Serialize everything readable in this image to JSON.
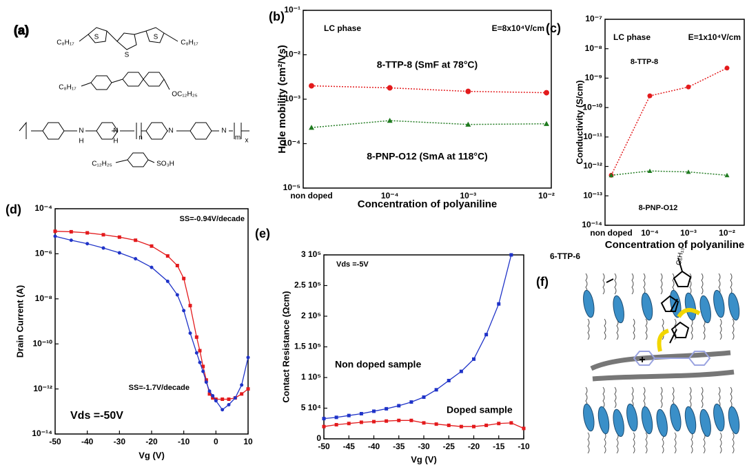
{
  "structures": {
    "panel": "(a)",
    "labels": [
      "C₈H₁₇",
      "S",
      "S",
      "S",
      "C₈H₁₇",
      "C₈H₁₇",
      "OC₁₂H₂₅",
      "N",
      "H",
      "N",
      "H",
      "n",
      "N",
      "N",
      "m",
      "x",
      "C₁₂H₂₅",
      "SO₃H"
    ]
  },
  "chart_data": [
    {
      "type": "line",
      "panel": "(b)",
      "ylabel": "Hole mobility (cm²/Vs)",
      "xlabel": "Concentration of polyaniline",
      "categories": [
        "non doped",
        "10⁻⁴",
        "10⁻³",
        "10⁻²"
      ],
      "yscale": "log",
      "ylim": [
        1e-05,
        0.1
      ],
      "yticks": [
        {
          "value": 1e-05,
          "label": "10⁻⁵"
        },
        {
          "value": 0.0001,
          "label": "10⁻⁴"
        },
        {
          "value": 0.001,
          "label": "10⁻³"
        },
        {
          "value": 0.01,
          "label": "10⁻²"
        },
        {
          "value": 0.1,
          "label": "10⁻¹"
        }
      ],
      "line_style": "dotted",
      "annotations": [
        "LC phase",
        "E=8x10⁴V/cm"
      ],
      "series": [
        {
          "name": "8-TTP-8 (SmF at 78°C)",
          "color": "#e31a1c",
          "marker": "circle",
          "values": [
            0.002,
            0.0018,
            0.0015,
            0.0014
          ]
        },
        {
          "name": "8-PNP-O12 (SmA at 118°C)",
          "color": "#1f7a1f",
          "marker": "triangle",
          "values": [
            0.00023,
            0.00033,
            0.00027,
            0.00028
          ]
        }
      ]
    },
    {
      "type": "line",
      "panel": "(c)",
      "ylabel": "Conductivity  (S/cm)",
      "xlabel": "Concentration of polyaniline",
      "categories": [
        "non doped",
        "10⁻⁴",
        "10⁻³",
        "10⁻²"
      ],
      "yscale": "log",
      "ylim": [
        1e-14,
        1e-07
      ],
      "yticks": [
        {
          "value": 1e-14,
          "label": "10⁻¹⁴"
        },
        {
          "value": 1e-13,
          "label": "10⁻¹³"
        },
        {
          "value": 1e-12,
          "label": "10⁻¹²"
        },
        {
          "value": 1e-11,
          "label": "10⁻¹¹"
        },
        {
          "value": 1e-10,
          "label": "10⁻¹⁰"
        },
        {
          "value": 1e-09,
          "label": "10⁻⁹"
        },
        {
          "value": 1e-08,
          "label": "10⁻⁸"
        },
        {
          "value": 1e-07,
          "label": "10⁻⁷"
        }
      ],
      "line_style": "dotted",
      "annotations": [
        "LC phase",
        "E=1x10⁴V/cm"
      ],
      "series": [
        {
          "name": "8-TTP-8",
          "color": "#e31a1c",
          "marker": "circle",
          "values": [
            5e-13,
            2.5e-10,
            5e-10,
            2.2e-09
          ]
        },
        {
          "name": "8-PNP-O12",
          "color": "#1f7a1f",
          "marker": "triangle",
          "values": [
            5e-13,
            7e-13,
            6.5e-13,
            5e-13
          ]
        }
      ]
    },
    {
      "type": "line",
      "panel": "(d)",
      "ylabel": "Drain Current (A)",
      "xlabel": "Vg (V)",
      "x": [
        -50,
        -45,
        -40,
        -35,
        -30,
        -25,
        -20,
        -15,
        -12,
        -10,
        -8,
        -6,
        -5,
        -4,
        -3,
        -2,
        -1,
        0,
        2,
        4,
        6,
        8,
        10
      ],
      "xlim": [
        -50,
        10
      ],
      "xticks": [
        -50,
        -40,
        -30,
        -20,
        -10,
        0,
        10
      ],
      "yscale": "log",
      "ylim": [
        1e-14,
        0.0001
      ],
      "yticks": [
        {
          "value": 1e-14,
          "label": "10⁻¹⁴"
        },
        {
          "value": 1e-12,
          "label": "10⁻¹²"
        },
        {
          "value": 1e-10,
          "label": "10⁻¹⁰"
        },
        {
          "value": 1e-08,
          "label": "10⁻⁸"
        },
        {
          "value": 1e-06,
          "label": "10⁻⁶"
        },
        {
          "value": 0.0001,
          "label": "10⁻⁴"
        }
      ],
      "line_style": "solid",
      "annotations": [
        "SS=-0.94V/decade",
        "SS=-1.7V/decade",
        "Vds =-50V"
      ],
      "series": [
        {
          "color": "#e31a1c",
          "marker": "square",
          "values": [
            1e-05,
            9.5e-06,
            8.5e-06,
            7e-06,
            5.5e-06,
            4e-06,
            2.2e-06,
            8e-07,
            3e-07,
            8e-08,
            5e-09,
            2e-10,
            5e-11,
            1e-11,
            2.5e-12,
            6e-13,
            4e-13,
            3.5e-13,
            3.5e-13,
            3.5e-13,
            4e-13,
            6e-13,
            1e-12
          ]
        },
        {
          "color": "#1f33c8",
          "marker": "circle",
          "values": [
            6e-06,
            4e-06,
            2.8e-06,
            1.8e-06,
            1.1e-06,
            6e-07,
            2.5e-07,
            6e-08,
            1.5e-08,
            3e-09,
            3e-10,
            4e-11,
            1.5e-11,
            6e-12,
            2e-12,
            8e-13,
            5e-13,
            3e-13,
            1.2e-13,
            2e-13,
            4e-13,
            1.5e-12,
            2.5e-11
          ]
        }
      ]
    },
    {
      "type": "line",
      "panel": "(e)",
      "ylabel": "Contact Resistance (Ωcm)",
      "xlabel": "Vg (V)",
      "x": [
        -50,
        -47.5,
        -45,
        -42.5,
        -40,
        -37.5,
        -35,
        -32.5,
        -30,
        -27.5,
        -25,
        -22.5,
        -20,
        -17.5,
        -15,
        -12.5,
        -10
      ],
      "xlim": [
        -50,
        -10
      ],
      "xticks": [
        -50,
        -45,
        -40,
        -35,
        -30,
        -25,
        -20,
        -15,
        -10
      ],
      "ylim": [
        0,
        300000
      ],
      "yticks": [
        0,
        {
          "value": 50000,
          "label": "5 10⁴"
        },
        {
          "value": 100000,
          "label": "1 10⁵"
        },
        {
          "value": 150000,
          "label": "1.5 10⁵"
        },
        {
          "value": 200000,
          "label": "2 10⁵"
        },
        {
          "value": 250000,
          "label": "2.5 10⁵"
        },
        {
          "value": 300000,
          "label": "3 10⁵"
        }
      ],
      "line_style": "solid",
      "annotations": [
        "Vds =-5V"
      ],
      "series": [
        {
          "name": "Non doped sample",
          "color": "#1f33c8",
          "marker": "square",
          "values": [
            33000,
            35000,
            38000,
            41000,
            45000,
            49000,
            54000,
            60000,
            68000,
            80000,
            95000,
            110000,
            130000,
            170000,
            220000,
            300000,
            null
          ]
        },
        {
          "name": "Doped sample",
          "color": "#e31a1c",
          "marker": "square",
          "values": [
            20000,
            23000,
            25000,
            27000,
            28000,
            29000,
            30000,
            30000,
            26000,
            24000,
            22000,
            20000,
            20000,
            22000,
            25000,
            26000,
            17000
          ]
        }
      ]
    }
  ],
  "schematic": {
    "panel": "(f)",
    "title": "6-TTP-6",
    "labels": [
      "C₆H₁₃",
      "+"
    ]
  }
}
